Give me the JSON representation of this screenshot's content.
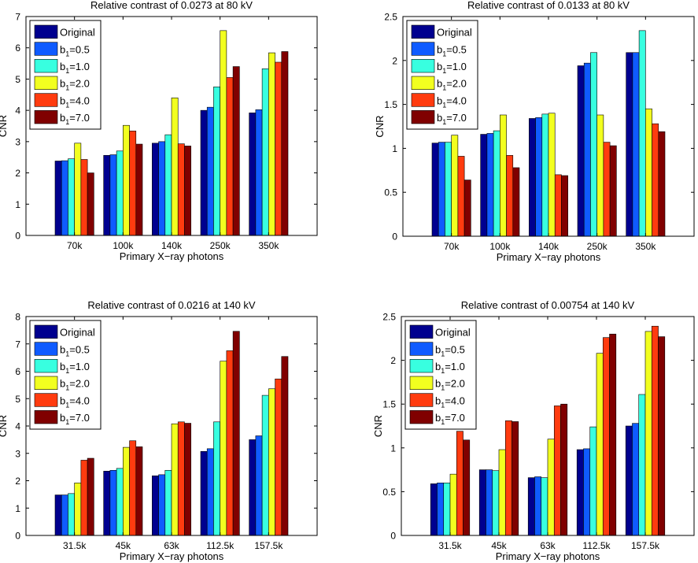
{
  "figure": {
    "xlabel": "Primary X−ray photons",
    "ylabel": "CNR",
    "series_names": [
      "Original",
      "b1=0.5",
      "b1=1.0",
      "b1=2.0",
      "b1=4.0",
      "b1=7.0"
    ],
    "legend_labels": [
      {
        "main": "Original",
        "sub": ""
      },
      {
        "main": "b",
        "sub": "1",
        "rest": "=0.5"
      },
      {
        "main": "b",
        "sub": "1",
        "rest": "=1.0"
      },
      {
        "main": "b",
        "sub": "1",
        "rest": "=2.0"
      },
      {
        "main": "b",
        "sub": "1",
        "rest": "=4.0"
      },
      {
        "main": "b",
        "sub": "1",
        "rest": "=7.0"
      }
    ],
    "colors": [
      "#00008f",
      "#0f5bff",
      "#38ffe0",
      "#f2ff1f",
      "#ff3b0f",
      "#800000"
    ]
  },
  "chart_data": [
    {
      "type": "bar",
      "title": "Relative contrast of 0.0273 at 80 kV",
      "xlabel": "Primary X−ray photons",
      "ylabel": "CNR",
      "categories": [
        "70k",
        "100k",
        "140k",
        "250k",
        "350k"
      ],
      "ylim": [
        0,
        7
      ],
      "yticks": [
        "0",
        "1",
        "2",
        "3",
        "4",
        "5",
        "6",
        "7"
      ],
      "yticks_values": [
        0,
        1,
        2,
        3,
        4,
        5,
        6,
        7
      ],
      "legend": "top-left",
      "series": [
        {
          "name": "Original",
          "values": [
            2.38,
            2.56,
            2.95,
            4.0,
            3.92
          ]
        },
        {
          "name": "b1=0.5",
          "values": [
            2.39,
            2.58,
            3.0,
            4.1,
            4.02
          ]
        },
        {
          "name": "b1=1.0",
          "values": [
            2.45,
            2.7,
            3.22,
            4.75,
            5.33
          ]
        },
        {
          "name": "b1=2.0",
          "values": [
            2.95,
            3.52,
            4.4,
            6.55,
            5.84
          ]
        },
        {
          "name": "b1=4.0",
          "values": [
            2.43,
            3.34,
            2.93,
            5.05,
            5.54
          ]
        },
        {
          "name": "b1=7.0",
          "values": [
            2.0,
            2.92,
            2.86,
            5.4,
            5.88
          ]
        }
      ]
    },
    {
      "type": "bar",
      "title": "Relative contrast of 0.0133 at 80 kV",
      "xlabel": "Primary X−ray photons",
      "ylabel": "CNR",
      "categories": [
        "70k",
        "100k",
        "140k",
        "250k",
        "350k"
      ],
      "ylim": [
        0,
        2.5
      ],
      "yticks": [
        "0",
        "0.5",
        "1",
        "1.5",
        "2",
        "2.5"
      ],
      "yticks_values": [
        0,
        0.5,
        1,
        1.5,
        2,
        2.5
      ],
      "legend": "top-left",
      "series": [
        {
          "name": "Original",
          "values": [
            1.06,
            1.16,
            1.34,
            1.94,
            2.09
          ]
        },
        {
          "name": "b1=0.5",
          "values": [
            1.07,
            1.17,
            1.35,
            1.97,
            2.09
          ]
        },
        {
          "name": "b1=1.0",
          "values": [
            1.07,
            1.2,
            1.39,
            2.09,
            2.34
          ]
        },
        {
          "name": "b1=2.0",
          "values": [
            1.15,
            1.38,
            1.4,
            1.38,
            1.45
          ]
        },
        {
          "name": "b1=4.0",
          "values": [
            0.91,
            0.92,
            0.7,
            1.07,
            1.28
          ]
        },
        {
          "name": "b1=7.0",
          "values": [
            0.64,
            0.78,
            0.69,
            1.03,
            1.19
          ]
        }
      ]
    },
    {
      "type": "bar",
      "title": "Relative contrast of 0.0216 at 140 kV",
      "xlabel": "Primary X−ray photons",
      "ylabel": "CNR",
      "categories": [
        "31.5k",
        "45k",
        "63k",
        "112.5k",
        "157.5k"
      ],
      "ylim": [
        0,
        8
      ],
      "yticks": [
        "0",
        "1",
        "2",
        "3",
        "4",
        "5",
        "6",
        "7",
        "8"
      ],
      "yticks_values": [
        0,
        1,
        2,
        3,
        4,
        5,
        6,
        7,
        8
      ],
      "legend": "top-left",
      "series": [
        {
          "name": "Original",
          "values": [
            1.48,
            2.35,
            2.18,
            3.07,
            3.5
          ]
        },
        {
          "name": "b1=0.5",
          "values": [
            1.48,
            2.38,
            2.22,
            3.17,
            3.64
          ]
        },
        {
          "name": "b1=1.0",
          "values": [
            1.53,
            2.45,
            2.38,
            4.15,
            5.12
          ]
        },
        {
          "name": "b1=2.0",
          "values": [
            1.92,
            3.22,
            4.08,
            6.37,
            5.36
          ]
        },
        {
          "name": "b1=4.0",
          "values": [
            2.75,
            3.46,
            4.15,
            6.75,
            5.72
          ]
        },
        {
          "name": "b1=7.0",
          "values": [
            2.82,
            3.24,
            4.1,
            7.46,
            6.54
          ]
        }
      ]
    },
    {
      "type": "bar",
      "title": "Relative contrast of 0.00754 at 140 kV",
      "xlabel": "Primary X−ray photons",
      "ylabel": "CNR",
      "categories": [
        "31.5k",
        "45k",
        "63k",
        "112.5k",
        "157.5k"
      ],
      "ylim": [
        0,
        2.5
      ],
      "yticks": [
        "0",
        "0.5",
        "1",
        "1.5",
        "2",
        "2.5"
      ],
      "yticks_values": [
        0,
        0.5,
        1,
        1.5,
        2,
        2.5
      ],
      "legend": "top-left",
      "series": [
        {
          "name": "Original",
          "values": [
            0.59,
            0.75,
            0.66,
            0.98,
            1.25
          ]
        },
        {
          "name": "b1=0.5",
          "values": [
            0.6,
            0.75,
            0.67,
            0.99,
            1.28
          ]
        },
        {
          "name": "b1=1.0",
          "values": [
            0.6,
            0.74,
            0.66,
            1.24,
            1.61
          ]
        },
        {
          "name": "b1=2.0",
          "values": [
            0.7,
            0.98,
            1.1,
            2.08,
            2.33
          ]
        },
        {
          "name": "b1=4.0",
          "values": [
            1.19,
            1.31,
            1.48,
            2.26,
            2.39
          ]
        },
        {
          "name": "b1=7.0",
          "values": [
            1.09,
            1.3,
            1.5,
            2.3,
            2.27
          ]
        }
      ]
    }
  ]
}
